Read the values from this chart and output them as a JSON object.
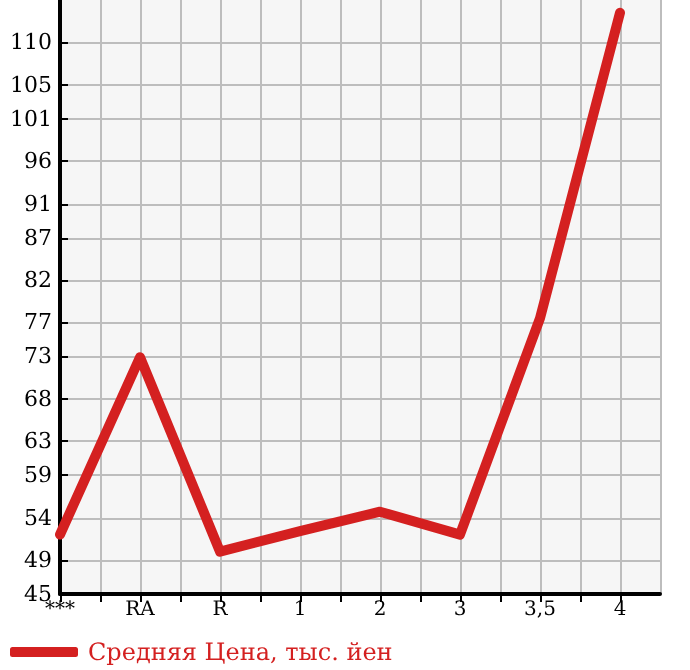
{
  "chart_data": {
    "type": "line",
    "categories": [
      "***",
      "RA",
      "R",
      "1",
      "2",
      "3",
      "3,5",
      "4"
    ],
    "series": [
      {
        "name": "Средняя Цена, тыс. йен",
        "color": "#d42020",
        "values": [
          52.0,
          72.9,
          50.0,
          52.4,
          54.7,
          52.0,
          77.5,
          113.5
        ]
      }
    ],
    "ylim": [
      45,
      115
    ],
    "yticks": [
      45,
      49,
      54,
      59,
      63,
      68,
      73,
      77,
      82,
      87,
      91,
      96,
      101,
      105,
      110
    ],
    "grid": true,
    "legend": "bottom",
    "marker": "none",
    "line_style": "solid"
  }
}
